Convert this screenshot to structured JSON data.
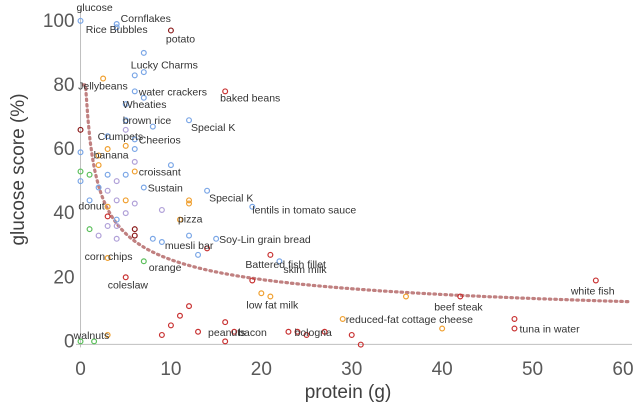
{
  "chart_data": {
    "type": "scatter",
    "xlabel": "protein (g)",
    "ylabel": "glucose score (%)",
    "xlim": [
      -0.5,
      61
    ],
    "ylim": [
      -3,
      104
    ],
    "x_ticks": [
      0,
      10,
      20,
      30,
      40,
      50,
      60
    ],
    "y_ticks": [
      0,
      20,
      40,
      60,
      80,
      100
    ],
    "grid": false,
    "colors": {
      "blue": "#7aa6e6",
      "orange": "#f0a030",
      "red": "#c83232",
      "green": "#5cbf5c",
      "lavender": "#b0a0d8",
      "darkred": "#8b1a1a",
      "trend": "#c08080",
      "axis": "#bfbfbf"
    },
    "labeled_points": [
      {
        "label": "glucose",
        "x": 0,
        "y": 100,
        "color": "blue"
      },
      {
        "label": "Cornflakes",
        "x": 4,
        "y": 98,
        "color": "blue"
      },
      {
        "label": "Rice Bubbles",
        "x": 4,
        "y": 99,
        "color": "blue"
      },
      {
        "label": "potato",
        "x": 10,
        "y": 97,
        "color": "darkred"
      },
      {
        "label": "Lucky Charms",
        "x": 6,
        "y": 83,
        "color": "blue"
      },
      {
        "label": "water crackers",
        "x": 6,
        "y": 78,
        "color": "blue"
      },
      {
        "label": "Jellybeans",
        "x": 2.5,
        "y": 82,
        "color": "orange"
      },
      {
        "label": "baked beans",
        "x": 16,
        "y": 78,
        "color": "red"
      },
      {
        "label": "Wheaties",
        "x": 5,
        "y": 74,
        "color": "blue"
      },
      {
        "label": "brown rice",
        "x": 5,
        "y": 69,
        "color": "blue"
      },
      {
        "label": "Special K",
        "x": 12,
        "y": 69,
        "color": "blue"
      },
      {
        "label": "Crumpets",
        "x": 3,
        "y": 64,
        "color": "blue"
      },
      {
        "label": "Cheerios",
        "x": 6,
        "y": 63,
        "color": "blue"
      },
      {
        "label": "banana",
        "x": 2,
        "y": 58,
        "color": "orange"
      },
      {
        "label": "croissant",
        "x": 6,
        "y": 53,
        "color": "orange"
      },
      {
        "label": "Sustain",
        "x": 7,
        "y": 48,
        "color": "blue"
      },
      {
        "label": "Special K",
        "x": 14,
        "y": 47,
        "color": "blue"
      },
      {
        "label": "donut",
        "x": 3,
        "y": 42,
        "color": "orange"
      },
      {
        "label": "lentils in tomato sauce",
        "x": 19,
        "y": 42,
        "color": "blue"
      },
      {
        "label": "pizza",
        "x": 11,
        "y": 38,
        "color": "orange"
      },
      {
        "label": "Soy-Lin grain bread",
        "x": 15,
        "y": 32,
        "color": "blue"
      },
      {
        "label": "muesli bar",
        "x": 9,
        "y": 31,
        "color": "blue"
      },
      {
        "label": "corn chips",
        "x": 3,
        "y": 26,
        "color": "orange"
      },
      {
        "label": "Battered fish fillet",
        "x": 21,
        "y": 27,
        "color": "red"
      },
      {
        "label": "orange",
        "x": 7,
        "y": 25,
        "color": "green"
      },
      {
        "label": "skim milk",
        "x": 22,
        "y": 25,
        "color": "blue"
      },
      {
        "label": "coleslaw",
        "x": 5,
        "y": 20,
        "color": "red"
      },
      {
        "label": "white fish",
        "x": 57,
        "y": 19,
        "color": "red"
      },
      {
        "label": "beef steak",
        "x": 42,
        "y": 14,
        "color": "red"
      },
      {
        "label": "low fat milk",
        "x": 21,
        "y": 14,
        "color": "orange"
      },
      {
        "label": "reduced-fat cottage cheese",
        "x": 29,
        "y": 7,
        "color": "orange"
      },
      {
        "label": "bologna",
        "x": 24,
        "y": 3,
        "color": "red"
      },
      {
        "label": "tuna in water",
        "x": 48,
        "y": 4,
        "color": "red"
      },
      {
        "label": "walnuts",
        "x": 3,
        "y": 2,
        "color": "orange"
      },
      {
        "label": "peanuts",
        "x": 13,
        "y": 3,
        "color": "red"
      },
      {
        "label": "bacon",
        "x": 17,
        "y": 3,
        "color": "red"
      }
    ],
    "unlabeled_points": [
      {
        "x": 0,
        "y": 66,
        "color": "darkred"
      },
      {
        "x": 0,
        "y": 59,
        "color": "blue"
      },
      {
        "x": 0,
        "y": 53,
        "color": "green"
      },
      {
        "x": 0,
        "y": 50,
        "color": "blue"
      },
      {
        "x": 0,
        "y": 0,
        "color": "green"
      },
      {
        "x": 1,
        "y": 52,
        "color": "green"
      },
      {
        "x": 1,
        "y": 44,
        "color": "blue"
      },
      {
        "x": 1,
        "y": 35,
        "color": "green"
      },
      {
        "x": 1.5,
        "y": 0,
        "color": "green"
      },
      {
        "x": 2,
        "y": 55,
        "color": "orange"
      },
      {
        "x": 2,
        "y": 48,
        "color": "blue"
      },
      {
        "x": 2,
        "y": 33,
        "color": "lavender"
      },
      {
        "x": 3,
        "y": 60,
        "color": "orange"
      },
      {
        "x": 3,
        "y": 52,
        "color": "blue"
      },
      {
        "x": 3,
        "y": 47,
        "color": "lavender"
      },
      {
        "x": 3,
        "y": 39,
        "color": "red"
      },
      {
        "x": 3,
        "y": 36,
        "color": "lavender"
      },
      {
        "x": 4,
        "y": 50,
        "color": "lavender"
      },
      {
        "x": 4,
        "y": 44,
        "color": "lavender"
      },
      {
        "x": 4,
        "y": 38,
        "color": "blue"
      },
      {
        "x": 4,
        "y": 36,
        "color": "lavender"
      },
      {
        "x": 4,
        "y": 32,
        "color": "lavender"
      },
      {
        "x": 5,
        "y": 66,
        "color": "lavender"
      },
      {
        "x": 5,
        "y": 61,
        "color": "orange"
      },
      {
        "x": 5,
        "y": 52,
        "color": "blue"
      },
      {
        "x": 5,
        "y": 44,
        "color": "orange"
      },
      {
        "x": 5,
        "y": 40,
        "color": "lavender"
      },
      {
        "x": 6,
        "y": 60,
        "color": "blue"
      },
      {
        "x": 6,
        "y": 56,
        "color": "lavender"
      },
      {
        "x": 6,
        "y": 43,
        "color": "lavender"
      },
      {
        "x": 6,
        "y": 35,
        "color": "darkred"
      },
      {
        "x": 6,
        "y": 33,
        "color": "darkred"
      },
      {
        "x": 7,
        "y": 90,
        "color": "blue"
      },
      {
        "x": 7,
        "y": 84,
        "color": "blue"
      },
      {
        "x": 7,
        "y": 76,
        "color": "blue"
      },
      {
        "x": 8,
        "y": 67,
        "color": "blue"
      },
      {
        "x": 8,
        "y": 32,
        "color": "blue"
      },
      {
        "x": 9,
        "y": 41,
        "color": "lavender"
      },
      {
        "x": 9,
        "y": 2,
        "color": "red"
      },
      {
        "x": 10,
        "y": 55,
        "color": "blue"
      },
      {
        "x": 10,
        "y": 5,
        "color": "red"
      },
      {
        "x": 11,
        "y": 8,
        "color": "red"
      },
      {
        "x": 12,
        "y": 44,
        "color": "orange"
      },
      {
        "x": 12,
        "y": 43,
        "color": "orange"
      },
      {
        "x": 12,
        "y": 33,
        "color": "blue"
      },
      {
        "x": 12,
        "y": 11,
        "color": "red"
      },
      {
        "x": 13,
        "y": 27,
        "color": "blue"
      },
      {
        "x": 14,
        "y": 29,
        "color": "red"
      },
      {
        "x": 16,
        "y": 6,
        "color": "red"
      },
      {
        "x": 16,
        "y": 0,
        "color": "red"
      },
      {
        "x": 19,
        "y": 19,
        "color": "red"
      },
      {
        "x": 20,
        "y": 15,
        "color": "orange"
      },
      {
        "x": 23,
        "y": 3,
        "color": "red"
      },
      {
        "x": 25,
        "y": 2,
        "color": "red"
      },
      {
        "x": 27,
        "y": 3,
        "color": "red"
      },
      {
        "x": 30,
        "y": 2,
        "color": "red"
      },
      {
        "x": 31,
        "y": -1,
        "color": "red"
      },
      {
        "x": 36,
        "y": 14,
        "color": "orange"
      },
      {
        "x": 40,
        "y": 4,
        "color": "orange"
      },
      {
        "x": 48,
        "y": 7,
        "color": "red"
      }
    ],
    "trendline": {
      "type": "power",
      "style": "dotted",
      "color": "trend"
    }
  }
}
